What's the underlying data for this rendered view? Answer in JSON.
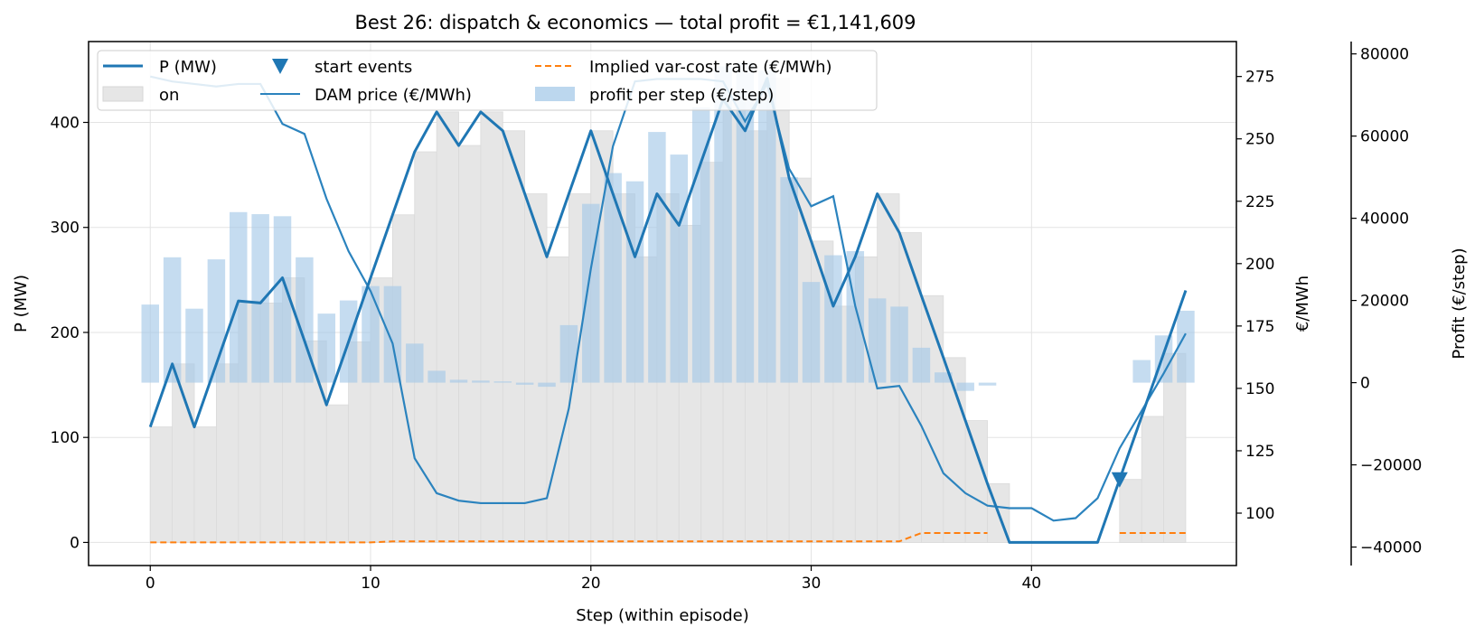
{
  "chart_data": {
    "type": "line",
    "title": "Best 26: dispatch & economics — total profit = €1,141,609",
    "xlabel": "Step (within episode)",
    "ylabel": "P (MW)",
    "y2label": "€/MWh",
    "y3label": "Profit (€/step)",
    "xlim": [
      -2.8,
      49.3
    ],
    "ylim": [
      -22,
      477
    ],
    "y2lim": [
      79,
      289
    ],
    "y3lim": [
      -44500,
      83000
    ],
    "x_ticks": [
      0,
      10,
      20,
      30,
      40
    ],
    "y_ticks": [
      0,
      100,
      200,
      300,
      400
    ],
    "y2_ticks": [
      100,
      125,
      150,
      175,
      200,
      225,
      250,
      275
    ],
    "y3_ticks": [
      -40000,
      -20000,
      0,
      20000,
      40000,
      60000,
      80000
    ],
    "y3_tick_labels": [
      "−40000",
      "−20000",
      "0",
      "20000",
      "40000",
      "60000",
      "80000"
    ],
    "grid": true,
    "legend_position": "top-left",
    "legend": {
      "power": "P (MW)",
      "on": "on",
      "start": "start events",
      "price": "DAM price (€/MWh)",
      "varcost": "Implied var-cost rate (€/MWh)",
      "profit": "profit per step (€/step)"
    },
    "x": [
      0,
      1,
      2,
      3,
      4,
      5,
      6,
      7,
      8,
      9,
      10,
      11,
      12,
      13,
      14,
      15,
      16,
      17,
      18,
      19,
      20,
      21,
      22,
      23,
      24,
      25,
      26,
      27,
      28,
      29,
      30,
      31,
      32,
      33,
      34,
      35,
      36,
      37,
      38,
      39,
      40,
      41,
      42,
      43,
      44,
      45,
      46,
      47
    ],
    "power_mw": [
      110,
      170,
      110,
      170,
      230,
      228,
      252,
      192,
      131,
      191,
      252,
      312,
      372,
      410,
      378,
      410,
      392,
      332,
      272,
      332,
      392,
      332,
      272,
      332,
      302,
      362,
      422,
      392,
      442,
      347,
      287,
      225,
      272,
      332,
      295,
      235,
      176,
      116,
      56,
      0,
      0,
      0,
      0,
      0,
      60,
      120,
      180,
      240
    ],
    "on_state": [
      1,
      1,
      1,
      1,
      1,
      1,
      1,
      1,
      1,
      1,
      1,
      1,
      1,
      1,
      1,
      1,
      1,
      1,
      1,
      1,
      1,
      1,
      1,
      1,
      1,
      1,
      1,
      1,
      1,
      1,
      1,
      1,
      1,
      1,
      1,
      1,
      1,
      1,
      1,
      0,
      0,
      0,
      0,
      0,
      1,
      1,
      1,
      1
    ],
    "dam_price": [
      275,
      273,
      272,
      271,
      272,
      272,
      256,
      252,
      226,
      205,
      189,
      168,
      122,
      108,
      105,
      104,
      104,
      104,
      106,
      142,
      198,
      247,
      273,
      274,
      274,
      274,
      273,
      257,
      272,
      238,
      223,
      227,
      183,
      150,
      151,
      135,
      116,
      108,
      103,
      102,
      102,
      97,
      98,
      106,
      126,
      141,
      156,
      172
    ],
    "start_events": [
      44
    ],
    "start_event_power": [
      60
    ],
    "var_cost": [
      0,
      0,
      0,
      0,
      0,
      0,
      0,
      0,
      0,
      0,
      0,
      1,
      1,
      1,
      1,
      1,
      1,
      1,
      1,
      1,
      1,
      1,
      1,
      1,
      1,
      1,
      1,
      1,
      1,
      1,
      1,
      1,
      1,
      1,
      1,
      9,
      9,
      9,
      9,
      null,
      null,
      null,
      null,
      null,
      9,
      9,
      9,
      9
    ],
    "profit_per_step": [
      19000,
      30500,
      18000,
      30000,
      41500,
      41000,
      40500,
      30500,
      16800,
      20000,
      23500,
      23500,
      9500,
      2900,
      700,
      500,
      300,
      -500,
      -1000,
      14000,
      43500,
      51000,
      49000,
      61000,
      55500,
      67000,
      77000,
      78000,
      76000,
      50000,
      24500,
      31000,
      32000,
      20500,
      18500,
      8500,
      2500,
      -2000,
      -700,
      0,
      0,
      0,
      0,
      0,
      0,
      5500,
      11500,
      17500
    ]
  },
  "colors": {
    "power": "#1f77b4",
    "price": "#2b83be",
    "on_fill": "#e6e6e6",
    "profit_bar": "#a6cae8",
    "var_cost": "#ff7f0e",
    "grid": "#e3e3e3"
  }
}
